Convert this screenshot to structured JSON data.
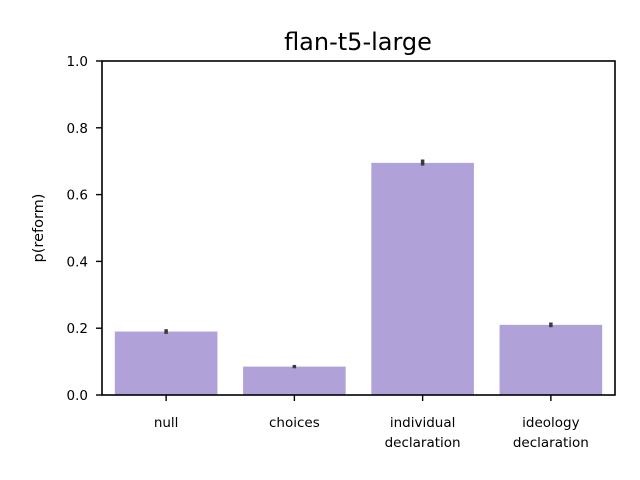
{
  "chart_data": {
    "type": "bar",
    "title": "flan-t5-large",
    "xlabel": "",
    "ylabel": "p(reform)",
    "categories": [
      [
        "null"
      ],
      [
        "choices"
      ],
      [
        "individual",
        "declaration"
      ],
      [
        "ideology",
        "declaration"
      ]
    ],
    "values": [
      0.19,
      0.085,
      0.695,
      0.21
    ],
    "error_low": [
      0.183,
      0.08,
      0.687,
      0.203
    ],
    "error_high": [
      0.197,
      0.09,
      0.705,
      0.217
    ],
    "ylim": [
      0,
      1.0
    ],
    "yticks": [
      0.0,
      0.2,
      0.4,
      0.6,
      0.8,
      1.0
    ],
    "ytick_labels": [
      "0.0",
      "0.2",
      "0.4",
      "0.6",
      "0.8",
      "1.0"
    ],
    "grid": false,
    "bar_color": "#b0a2d8",
    "error_color": "#3a3a3a"
  }
}
